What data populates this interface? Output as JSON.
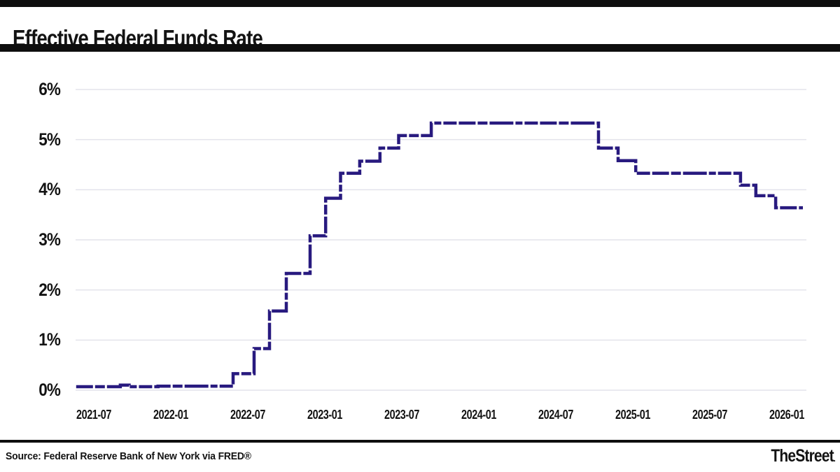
{
  "header": {
    "title": "Effective Federal Funds Rate"
  },
  "footer": {
    "source": "Source: Federal Reserve Bank of New York via FRED®",
    "brand": "TheStreet",
    "brand_dot": "."
  },
  "colors": {
    "line": "#281a7f",
    "grid": "#e3e3eb",
    "bars": "#0e0e0e",
    "text": "#131313"
  },
  "chart_data": {
    "type": "line",
    "line_style": "stepped-dashed",
    "title": "Effective Federal Funds Rate",
    "xlabel": "",
    "ylabel": "",
    "ylim": [
      0,
      6
    ],
    "grid": "horizontal-only",
    "legend": "none",
    "ytick_labels": [
      "0%",
      "1%",
      "2%",
      "3%",
      "4%",
      "5%",
      "6%"
    ],
    "xtick_labels": [
      "2021-07",
      "2022-01",
      "2022-07",
      "2023-01",
      "2023-07",
      "2024-01",
      "2024-07",
      "2025-01",
      "2025-07",
      "2026-01"
    ],
    "unit": "percent",
    "points": [
      [
        "2021-05-20",
        0.07
      ],
      [
        "2021-09-03",
        0.1
      ],
      [
        "2021-09-24",
        0.07
      ],
      [
        "2021-12-01",
        0.08
      ],
      [
        "2022-05-27",
        0.33
      ],
      [
        "2022-07-16",
        0.83
      ],
      [
        "2022-08-22",
        1.58
      ],
      [
        "2022-10-01",
        2.33
      ],
      [
        "2022-11-27",
        3.08
      ],
      [
        "2023-01-03",
        3.83
      ],
      [
        "2023-02-08",
        4.33
      ],
      [
        "2023-03-23",
        4.57
      ],
      [
        "2023-05-10",
        4.83
      ],
      [
        "2023-06-24",
        5.08
      ],
      [
        "2023-09-10",
        5.33
      ],
      [
        "2024-10-11",
        4.83
      ],
      [
        "2024-11-27",
        4.58
      ],
      [
        "2025-01-08",
        4.33
      ],
      [
        "2025-09-13",
        4.09
      ],
      [
        "2025-10-19",
        3.88
      ],
      [
        "2025-12-05",
        3.64
      ],
      [
        "2026-02-07",
        3.64
      ]
    ]
  }
}
